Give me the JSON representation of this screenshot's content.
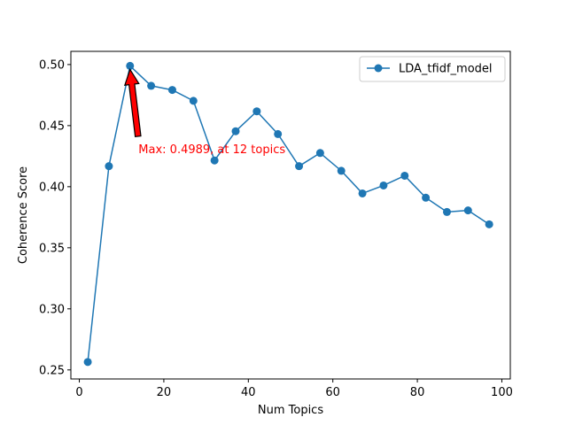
{
  "chart_data": {
    "type": "line",
    "title": "",
    "xlabel": "Num Topics",
    "ylabel": "Coherence Score",
    "xlim": [
      -2,
      102
    ],
    "ylim": [
      0.2426,
      0.5108
    ],
    "xticks": [
      0,
      20,
      40,
      60,
      80,
      100
    ],
    "yticks": [
      0.25,
      0.3,
      0.35,
      0.4,
      0.45,
      0.5
    ],
    "ytick_labels": [
      "0.25",
      "0.30",
      "0.35",
      "0.40",
      "0.45",
      "0.50"
    ],
    "grid": false,
    "legend_placement": "top-right",
    "series": [
      {
        "name": "LDA_tfidf_model",
        "color": "#1f77b4",
        "marker": "circle",
        "x": [
          2,
          7,
          12,
          17,
          22,
          27,
          32,
          37,
          42,
          47,
          52,
          57,
          62,
          67,
          72,
          77,
          82,
          87,
          92,
          97
        ],
        "y": [
          0.2565,
          0.4168,
          0.4989,
          0.4826,
          0.4792,
          0.4703,
          0.4215,
          0.4454,
          0.4617,
          0.4431,
          0.4168,
          0.4276,
          0.413,
          0.3945,
          0.401,
          0.409,
          0.391,
          0.3793,
          0.3806,
          0.3692
        ]
      }
    ],
    "annotation": {
      "text": "Max: 0.4989, at 12 topics",
      "point": [
        12,
        0.4989
      ],
      "text_position": [
        14,
        0.4275
      ],
      "color": "#ff0000",
      "arrow_color": "#ff0000"
    }
  }
}
